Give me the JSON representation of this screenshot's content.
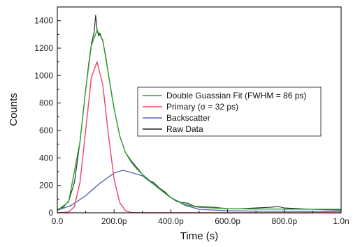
{
  "chart_data": {
    "type": "line",
    "xlabel": "Time (s)",
    "ylabel": "Counts",
    "xlim": [
      0,
      1000
    ],
    "ylim": [
      0,
      1500
    ],
    "x_ticks": [
      {
        "value": 0,
        "label": "0.0"
      },
      {
        "value": 200,
        "label": "200.0p"
      },
      {
        "value": 400,
        "label": "400.0p"
      },
      {
        "value": 600,
        "label": "600.0p"
      },
      {
        "value": 800,
        "label": "800.0p"
      },
      {
        "value": 1000,
        "label": "1.0n"
      }
    ],
    "y_ticks": [
      {
        "value": 0,
        "label": "0"
      },
      {
        "value": 200,
        "label": "200"
      },
      {
        "value": 400,
        "label": "400"
      },
      {
        "value": 600,
        "label": "600"
      },
      {
        "value": 800,
        "label": "800"
      },
      {
        "value": 1000,
        "label": "1000"
      },
      {
        "value": 1200,
        "label": "1200"
      },
      {
        "value": 1400,
        "label": "1400"
      }
    ],
    "grid": false,
    "legend_position": "right",
    "series": [
      {
        "name": "Double Guassian Fit (FWHM = 86 ps)",
        "color": "#2ca02c",
        "x": [
          0,
          40,
          80,
          100,
          120,
          140,
          160,
          180,
          200,
          220,
          240,
          260,
          280,
          300,
          350,
          400,
          450,
          500,
          600,
          700,
          800,
          900,
          1000
        ],
        "y": [
          18,
          80,
          520,
          900,
          1220,
          1330,
          1260,
          1010,
          760,
          560,
          440,
          370,
          320,
          280,
          190,
          110,
          60,
          40,
          30,
          28,
          27,
          26,
          26
        ]
      },
      {
        "name": "Primary (σ = 32 ps)",
        "color": "#ee4466",
        "x": [
          0,
          40,
          60,
          80,
          100,
          120,
          140,
          160,
          180,
          200,
          220,
          240,
          260,
          300,
          1000
        ],
        "y": [
          0,
          5,
          44,
          225,
          602,
          987,
          1100,
          935,
          570,
          245,
          75,
          16,
          2,
          0,
          0
        ]
      },
      {
        "name": "Backscatter",
        "color": "#5566bb",
        "x": [
          0,
          50,
          100,
          150,
          200,
          230,
          250,
          300,
          350,
          400,
          450,
          500,
          600,
          700,
          800,
          900,
          1000
        ],
        "y": [
          18,
          55,
          125,
          215,
          290,
          310,
          300,
          270,
          190,
          110,
          55,
          25,
          15,
          12,
          11,
          10,
          10
        ]
      },
      {
        "name": "Raw Data",
        "color": "#222222",
        "x": [
          0,
          20,
          40,
          60,
          80,
          100,
          110,
          120,
          130,
          135,
          140,
          145,
          150,
          160,
          170,
          180,
          190,
          200,
          220,
          240,
          260,
          280,
          300,
          320,
          340,
          360,
          380,
          400,
          420,
          440,
          460,
          480,
          500,
          550,
          600,
          650,
          700,
          750,
          780,
          800,
          850,
          900,
          950,
          1000
        ],
        "y": [
          25,
          40,
          85,
          220,
          520,
          900,
          1080,
          1230,
          1320,
          1440,
          1340,
          1290,
          1310,
          1250,
          1150,
          1010,
          880,
          760,
          560,
          440,
          380,
          330,
          280,
          240,
          220,
          180,
          150,
          110,
          85,
          75,
          70,
          50,
          45,
          40,
          30,
          30,
          35,
          40,
          45,
          35,
          30,
          25,
          22,
          20
        ]
      }
    ]
  }
}
